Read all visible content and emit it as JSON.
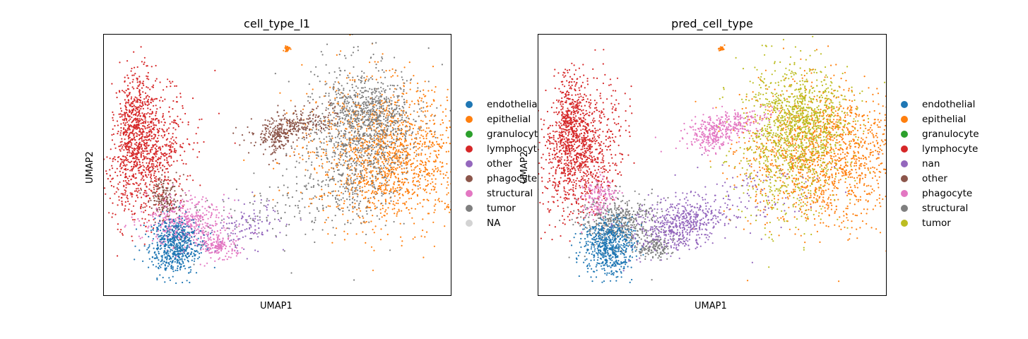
{
  "chart_data": [
    {
      "type": "scatter",
      "title": "cell_type_l1",
      "xlabel": "UMAP1",
      "ylabel": "UMAP2",
      "legend_position": "right",
      "series": [
        {
          "name": "endothelial",
          "color": "#1f77b4"
        },
        {
          "name": "epithelial",
          "color": "#ff7f0e"
        },
        {
          "name": "granulocyte",
          "color": "#2ca02c"
        },
        {
          "name": "lymphocyte",
          "color": "#d62728"
        },
        {
          "name": "other",
          "color": "#9467bd"
        },
        {
          "name": "phagocyte",
          "color": "#8c564b"
        },
        {
          "name": "structural",
          "color": "#e377c2"
        },
        {
          "name": "tumor",
          "color": "#7f7f7f"
        },
        {
          "name": "NA",
          "color": "#d3d3d3"
        }
      ]
    },
    {
      "type": "scatter",
      "title": "pred_cell_type",
      "xlabel": "UMAP1",
      "ylabel": "UMAP2",
      "legend_position": "right",
      "series": [
        {
          "name": "endothelial",
          "color": "#1f77b4"
        },
        {
          "name": "epithelial",
          "color": "#ff7f0e"
        },
        {
          "name": "granulocyte",
          "color": "#2ca02c"
        },
        {
          "name": "lymphocyte",
          "color": "#d62728"
        },
        {
          "name": "nan",
          "color": "#9467bd"
        },
        {
          "name": "other",
          "color": "#8c564b"
        },
        {
          "name": "phagocyte",
          "color": "#e377c2"
        },
        {
          "name": "structural",
          "color": "#7f7f7f"
        },
        {
          "name": "tumor",
          "color": "#bcbd22"
        }
      ]
    }
  ]
}
